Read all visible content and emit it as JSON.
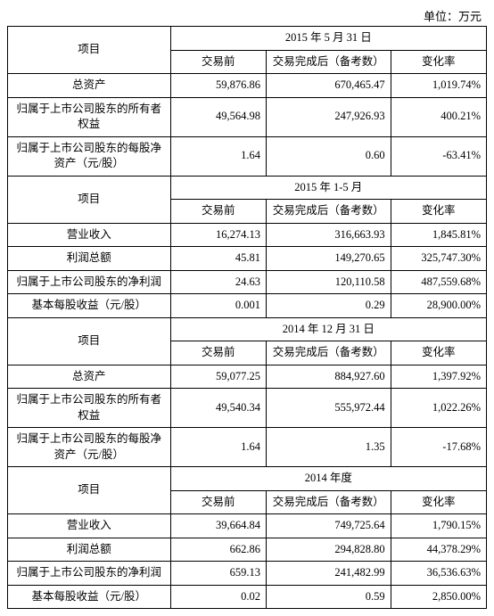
{
  "unit_label": "单位：万元",
  "col_headers": {
    "item": "项目",
    "before": "交易前",
    "after": "交易完成后（备考数）",
    "change": "变化率"
  },
  "sections": [
    {
      "period": "2015 年 5 月 31 日",
      "rows": [
        {
          "label": "总资产",
          "before": "59,876.86",
          "after": "670,465.47",
          "change": "1,019.74%"
        },
        {
          "label": "归属于上市公司股东的所有者权益",
          "before": "49,564.98",
          "after": "247,926.93",
          "change": "400.21%"
        },
        {
          "label": "归属于上市公司股东的每股净资产（元/股）",
          "multi": true,
          "before": "1.64",
          "after": "0.60",
          "change": "-63.41%"
        }
      ]
    },
    {
      "period": "2015 年 1-5 月",
      "rows": [
        {
          "label": "营业收入",
          "before": "16,274.13",
          "after": "316,663.93",
          "change": "1,845.81%"
        },
        {
          "label": "利润总额",
          "before": "45.81",
          "after": "149,270.65",
          "change": "325,747.30%"
        },
        {
          "label": "归属于上市公司股东的净利润",
          "before": "24.63",
          "after": "120,110.58",
          "change": "487,559.68%"
        },
        {
          "label": "基本每股收益（元/股）",
          "before": "0.001",
          "after": "0.29",
          "change": "28,900.00%"
        }
      ]
    },
    {
      "period": "2014 年 12 月 31 日",
      "rows": [
        {
          "label": "总资产",
          "before": "59,077.25",
          "after": "884,927.60",
          "change": "1,397.92%"
        },
        {
          "label": "归属于上市公司股东的所有者权益",
          "before": "49,540.34",
          "after": "555,972.44",
          "change": "1,022.26%"
        },
        {
          "label": "归属于上市公司股东的每股净资产（元/股）",
          "multi": true,
          "before": "1.64",
          "after": "1.35",
          "change": "-17.68%"
        }
      ]
    },
    {
      "period": "2014 年度",
      "rows": [
        {
          "label": "营业收入",
          "before": "39,664.84",
          "after": "749,725.64",
          "change": "1,790.15%"
        },
        {
          "label": "利润总额",
          "before": "662.86",
          "after": "294,828.80",
          "change": "44,378.29%"
        },
        {
          "label": "归属于上市公司股东的净利润",
          "before": "659.13",
          "after": "241,482.99",
          "change": "36,536.63%"
        },
        {
          "label": "基本每股收益（元/股）",
          "before": "0.02",
          "after": "0.59",
          "change": "2,850.00%"
        }
      ]
    }
  ]
}
